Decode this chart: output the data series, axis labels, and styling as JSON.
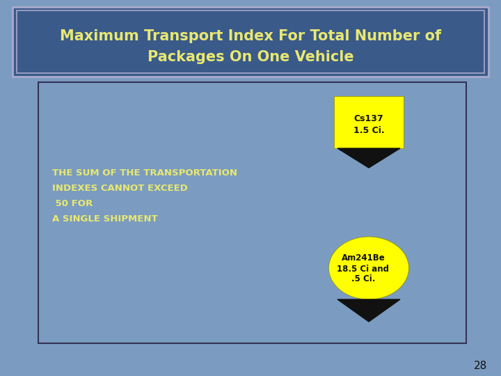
{
  "title_line1": "Maximum Transport Index For Total Number of",
  "title_line2": "Packages On One Vehicle",
  "title_color": "#e8e870",
  "title_bg_color": "#3a5a8a",
  "bg_color": "#7b9cc0",
  "content_bg_color": "#7b9cc0",
  "border_color": "#333355",
  "body_text_line1": "THE SUM OF THE TRANSPORTATION",
  "body_text_line2": "INDEXES CANNOT EXCEED",
  "body_text_line3": " 50 FOR",
  "body_text_line4": "A SINGLE SHIPMENT",
  "body_text_color": "#e8e870",
  "box1_label_line1": "Cs137",
  "box1_label_line2": "1.5 Ci.",
  "box2_label_line1": "Am241Be",
  "box2_label_line2": "18.5 Ci and",
  "box2_label_line3": ".5 Ci.",
  "label_color": "#111111",
  "yellow_color": "#ffff00",
  "black_color": "#111111",
  "page_number": "28",
  "page_number_color": "#111111",
  "title_border_color": "#aaaacc",
  "content_border_color": "#333355"
}
